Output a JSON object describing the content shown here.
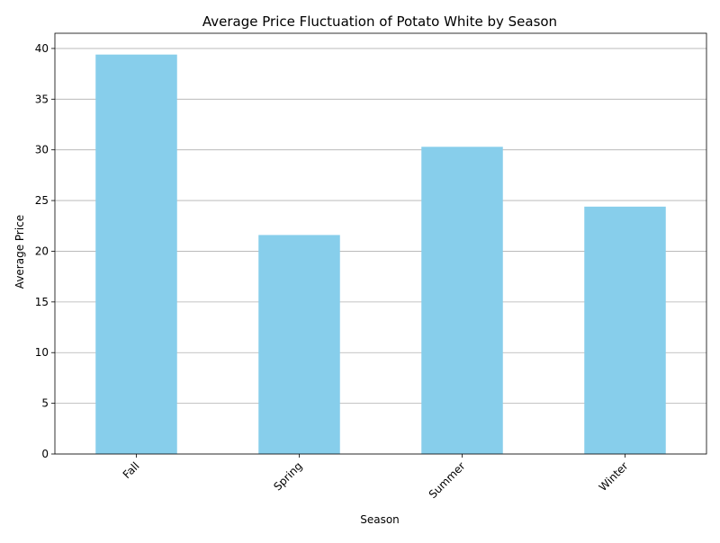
{
  "chart_data": {
    "type": "bar",
    "title": "Average Price Fluctuation of Potato White by Season",
    "xlabel": "Season",
    "ylabel": "Average Price",
    "categories": [
      "Fall",
      "Spring",
      "Summer",
      "Winter"
    ],
    "values": [
      39.4,
      21.6,
      30.3,
      24.4
    ],
    "ylim": [
      0,
      41.5
    ],
    "yticks": [
      "0",
      "5",
      "10",
      "15",
      "20",
      "25",
      "30",
      "35",
      "40"
    ],
    "xtick_rotation": 45,
    "grid": "horizontal",
    "legend": "none",
    "bar_color": "#87CEEB",
    "grid_color": "#b0b0b0",
    "axis_color": "#000000"
  }
}
